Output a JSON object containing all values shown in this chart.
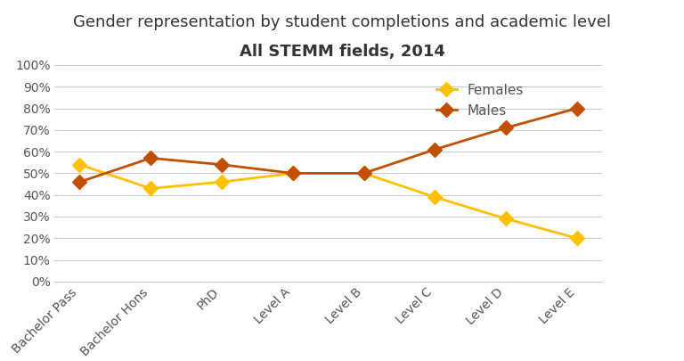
{
  "title_line1": "Gender representation by student completions and academic level",
  "title_line2": "All STEMM fields, 2014",
  "categories": [
    "Bachelor Pass",
    "Bachelor Hons",
    "PhD",
    "Level A",
    "Level B",
    "Level C",
    "Level D",
    "Level E"
  ],
  "females": [
    0.54,
    0.43,
    0.46,
    0.5,
    0.5,
    0.39,
    0.29,
    0.2
  ],
  "males": [
    0.46,
    0.57,
    0.54,
    0.5,
    0.5,
    0.61,
    0.71,
    0.8
  ],
  "female_color": "#FFC000",
  "male_color": "#C05000",
  "marker": "D",
  "marker_size": 8,
  "ylim": [
    0,
    1.0
  ],
  "yticks": [
    0,
    0.1,
    0.2,
    0.3,
    0.4,
    0.5,
    0.6,
    0.7,
    0.8,
    0.9,
    1.0
  ],
  "ytick_labels": [
    "0%",
    "10%",
    "20%",
    "30%",
    "40%",
    "50%",
    "60%",
    "70%",
    "80%",
    "90%",
    "100%"
  ],
  "legend_labels": [
    "Females",
    "Males"
  ],
  "background_color": "#FFFFFF",
  "grid_color": "#CCCCCC",
  "title_fontsize": 13,
  "tick_fontsize": 10,
  "legend_fontsize": 11
}
